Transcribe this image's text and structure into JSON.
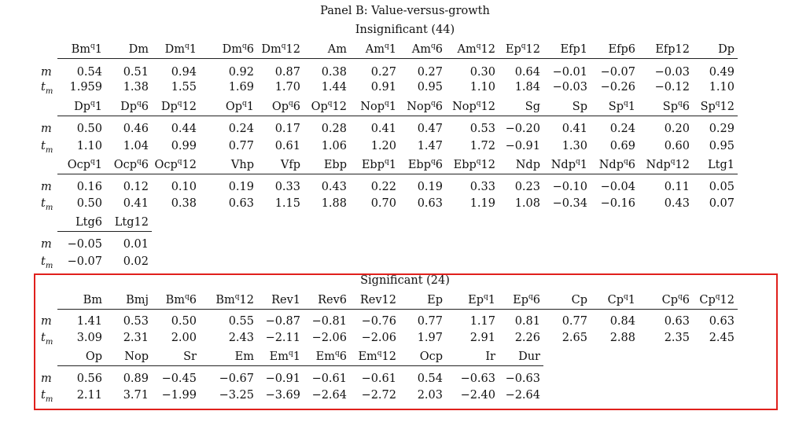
{
  "panel_title": "Panel B: Value-versus-growth",
  "row_labels": {
    "m": "m",
    "t": "t",
    "t_sub": "m"
  },
  "sections": [
    {
      "title": "Insignificant (44)",
      "blocks": [
        {
          "headers": [
            [
              "Bm",
              "q",
              "1"
            ],
            [
              "Dm"
            ],
            [
              "Dm",
              "q",
              "1"
            ],
            [
              "Dm",
              "q",
              "6"
            ],
            [
              "Dm",
              "q",
              "12"
            ],
            [
              "Am"
            ],
            [
              "Am",
              "q",
              "1"
            ],
            [
              "Am",
              "q",
              "6"
            ],
            [
              "Am",
              "q",
              "12"
            ],
            [
              "Ep",
              "q",
              "12"
            ],
            [
              "Efp1"
            ],
            [
              "Efp6"
            ],
            [
              "Efp12"
            ],
            [
              "Dp"
            ]
          ],
          "m": [
            "0.54",
            "0.51",
            "0.94",
            "0.92",
            "0.87",
            "0.38",
            "0.27",
            "0.27",
            "0.30",
            "0.64",
            "−0.01",
            "−0.07",
            "−0.03",
            "0.49"
          ],
          "t": [
            "1.959",
            "1.38",
            "1.55",
            "1.69",
            "1.70",
            "1.44",
            "0.91",
            "0.95",
            "1.10",
            "1.84",
            "−0.03",
            "−0.26",
            "−0.12",
            "1.10"
          ]
        },
        {
          "headers": [
            [
              "Dp",
              "q",
              "1"
            ],
            [
              "Dp",
              "q",
              "6"
            ],
            [
              "Dp",
              "q",
              "12"
            ],
            [
              "Op",
              "q",
              "1"
            ],
            [
              "Op",
              "q",
              "6"
            ],
            [
              "Op",
              "q",
              "12"
            ],
            [
              "Nop",
              "q",
              "1"
            ],
            [
              "Nop",
              "q",
              "6"
            ],
            [
              "Nop",
              "q",
              "12"
            ],
            [
              "Sg"
            ],
            [
              "Sp"
            ],
            [
              "Sp",
              "q",
              "1"
            ],
            [
              "Sp",
              "q",
              "6"
            ],
            [
              "Sp",
              "q",
              "12"
            ]
          ],
          "m": [
            "0.50",
            "0.46",
            "0.44",
            "0.24",
            "0.17",
            "0.28",
            "0.41",
            "0.47",
            "0.53",
            "−0.20",
            "0.41",
            "0.24",
            "0.20",
            "0.29"
          ],
          "t": [
            "1.10",
            "1.04",
            "0.99",
            "0.77",
            "0.61",
            "1.06",
            "1.20",
            "1.47",
            "1.72",
            "−0.91",
            "1.30",
            "0.69",
            "0.60",
            "0.95"
          ]
        },
        {
          "headers": [
            [
              "Ocp",
              "q",
              "1"
            ],
            [
              "Ocp",
              "q",
              "6"
            ],
            [
              "Ocp",
              "q",
              "12"
            ],
            [
              "Vhp"
            ],
            [
              "Vfp"
            ],
            [
              "Ebp"
            ],
            [
              "Ebp",
              "q",
              "1"
            ],
            [
              "Ebp",
              "q",
              "6"
            ],
            [
              "Ebp",
              "q",
              "12"
            ],
            [
              "Ndp"
            ],
            [
              "Ndp",
              "q",
              "1"
            ],
            [
              "Ndp",
              "q",
              "6"
            ],
            [
              "Ndp",
              "q",
              "12"
            ],
            [
              "Ltg1"
            ]
          ],
          "m": [
            "0.16",
            "0.12",
            "0.10",
            "0.19",
            "0.33",
            "0.43",
            "0.22",
            "0.19",
            "0.33",
            "0.23",
            "−0.10",
            "−0.04",
            "0.11",
            "0.05"
          ],
          "t": [
            "0.50",
            "0.41",
            "0.38",
            "0.63",
            "1.15",
            "1.88",
            "0.70",
            "0.63",
            "1.19",
            "1.08",
            "−0.34",
            "−0.16",
            "0.43",
            "0.07"
          ]
        },
        {
          "headers": [
            [
              "Ltg6"
            ],
            [
              "Ltg12"
            ]
          ],
          "m": [
            "−0.05",
            "0.01"
          ],
          "t": [
            "−0.07",
            "0.02"
          ]
        }
      ]
    },
    {
      "title": "Significant (24)",
      "blocks": [
        {
          "headers": [
            [
              "Bm"
            ],
            [
              "Bmj"
            ],
            [
              "Bm",
              "q",
              "6"
            ],
            [
              "Bm",
              "q",
              "12"
            ],
            [
              "Rev1"
            ],
            [
              "Rev6"
            ],
            [
              "Rev12"
            ],
            [
              "Ep"
            ],
            [
              "Ep",
              "q",
              "1"
            ],
            [
              "Ep",
              "q",
              "6"
            ],
            [
              "Cp"
            ],
            [
              "Cp",
              "q",
              "1"
            ],
            [
              "Cp",
              "q",
              "6"
            ],
            [
              "Cp",
              "q",
              "12"
            ]
          ],
          "m": [
            "1.41",
            "0.53",
            "0.50",
            "0.55",
            "−0.87",
            "−0.81",
            "−0.76",
            "0.77",
            "1.17",
            "0.81",
            "0.77",
            "0.84",
            "0.63",
            "0.63"
          ],
          "t": [
            "3.09",
            "2.31",
            "2.00",
            "2.43",
            "−2.11",
            "−2.06",
            "−2.06",
            "1.97",
            "2.91",
            "2.26",
            "2.65",
            "2.88",
            "2.35",
            "2.45"
          ]
        },
        {
          "headers": [
            [
              "Op"
            ],
            [
              "Nop"
            ],
            [
              "Sr"
            ],
            [
              "Em"
            ],
            [
              "Em",
              "q",
              "1"
            ],
            [
              "Em",
              "q",
              "6"
            ],
            [
              "Em",
              "q",
              "12"
            ],
            [
              "Ocp"
            ],
            [
              "Ir"
            ],
            [
              "Dur"
            ]
          ],
          "m": [
            "0.56",
            "0.89",
            "−0.45",
            "−0.67",
            "−0.91",
            "−0.61",
            "−0.61",
            "0.54",
            "−0.63",
            "−0.63"
          ],
          "t": [
            "2.11",
            "3.71",
            "−1.99",
            "−3.25",
            "−3.69",
            "−2.64",
            "−2.72",
            "2.03",
            "−2.40",
            "−2.64"
          ]
        }
      ]
    }
  ],
  "highlight_color": "#e0201c"
}
